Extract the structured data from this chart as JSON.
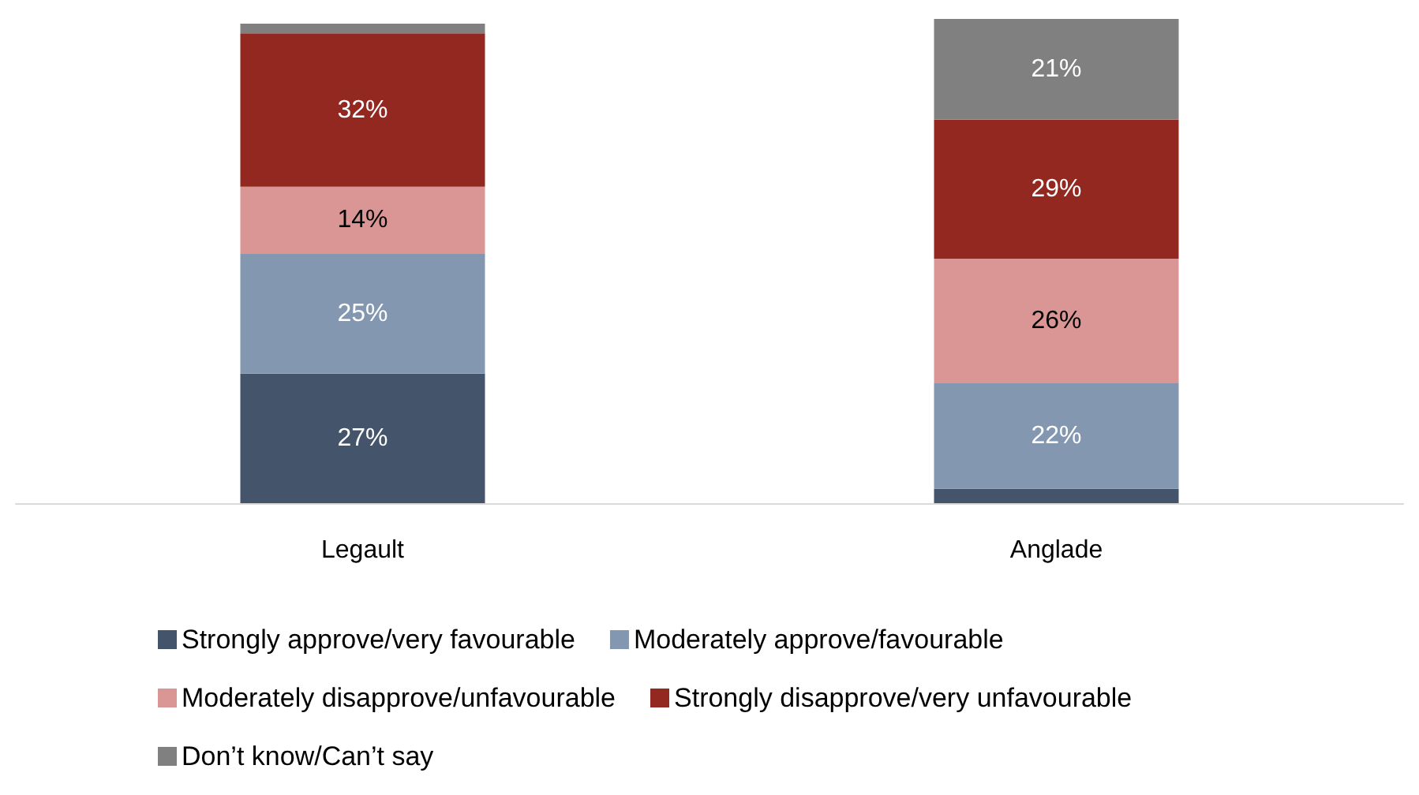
{
  "chart_data": {
    "type": "bar",
    "stacked": true,
    "categories": [
      "Legault",
      "Anglade"
    ],
    "series": [
      {
        "name": "Strongly approve/very favourable",
        "color": "#44546a",
        "values": [
          27,
          3
        ],
        "value_labels": [
          "27%",
          null
        ]
      },
      {
        "name": "Moderately approve/favourable",
        "color": "#8497b0",
        "values": [
          25,
          22
        ],
        "value_labels": [
          "25%",
          "22%"
        ]
      },
      {
        "name": "Moderately disapprove/unfavourable",
        "color": "#da9694",
        "values": [
          14,
          26
        ],
        "value_labels": [
          "14%",
          "26%"
        ]
      },
      {
        "name": "Strongly disapprove/very unfavourable",
        "color": "#922820",
        "values": [
          32,
          29
        ],
        "value_labels": [
          "32%",
          "29%"
        ]
      },
      {
        "name": "Don’t know/Can’t say",
        "color": "#808080",
        "values": [
          2,
          21
        ],
        "value_labels": [
          null,
          "21%"
        ]
      }
    ],
    "legend": "bottom",
    "grid": false
  }
}
